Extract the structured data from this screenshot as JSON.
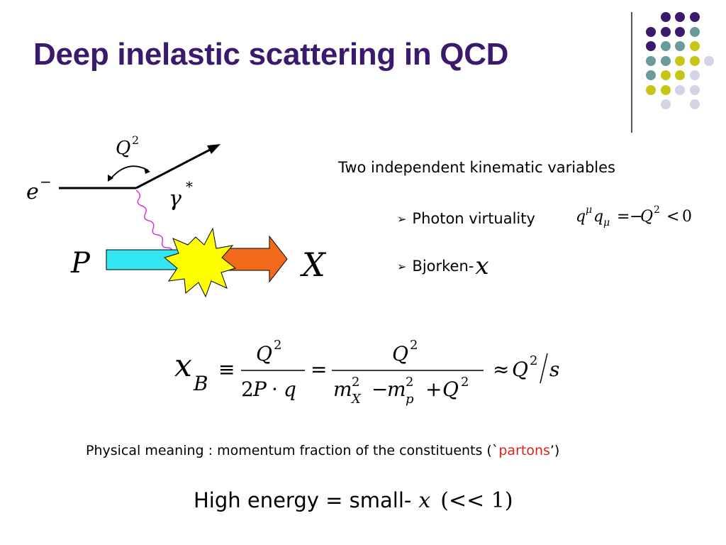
{
  "slide": {
    "title": "Deep inelastic scattering in QCD",
    "colors": {
      "title": "#3b1a6e",
      "purple": "#3b1a6e",
      "teal": "#6a9c9e",
      "yellow": "#c6c617",
      "lavender": "#d3d3e6"
    }
  },
  "diagram": {
    "electron_label": "e",
    "electron_superscript": "−",
    "photon_label": "γ",
    "photon_superscript": "*",
    "q2_label": "Q",
    "q2_superscript": "2",
    "proton_label": "P",
    "final_state_label": "X"
  },
  "kinematics": {
    "heading": "Two independent kinematic variables",
    "bullets": [
      {
        "label": "Photon virtuality",
        "icon": "arrow-bullet-icon"
      },
      {
        "label": "Bjorken-",
        "icon": "arrow-bullet-icon"
      }
    ],
    "bjorken_symbol": "x"
  },
  "footer": {
    "physical_meaning_prefix": "Physical meaning : momentum fraction of the constituents (`",
    "physical_meaning_highlight": "partons",
    "physical_meaning_suffix": "’)",
    "high_energy_text": "High energy = small-",
    "high_energy_math_x": "x",
    "high_energy_math_rest": "(<< 1)"
  }
}
